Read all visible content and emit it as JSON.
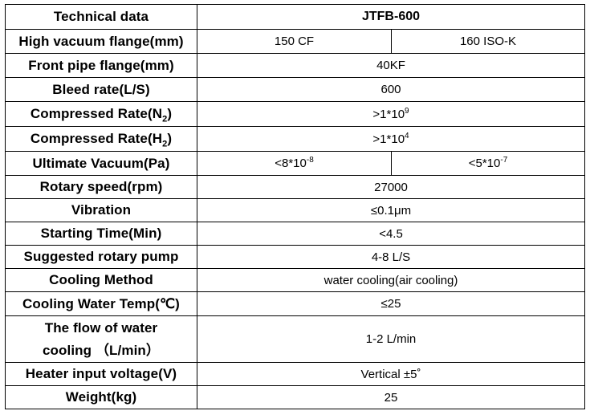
{
  "header": {
    "label": "Technical data",
    "model": "JTFB-600"
  },
  "rows": {
    "high_vacuum_flange": {
      "label": "High vacuum flange(mm)",
      "value_a": "150 CF",
      "value_b": "160 ISO-K"
    },
    "front_pipe_flange": {
      "label": "Front pipe flange(mm)",
      "value": "40KF"
    },
    "bleed_rate": {
      "label": "Bleed rate(L/S)",
      "value": "600"
    },
    "compressed_rate_n2": {
      "label_pre": "Compressed Rate(N",
      "label_sub": "2",
      "label_post": ")",
      "value_base": ">1*10",
      "value_exp": "9"
    },
    "compressed_rate_h2": {
      "label_pre": "Compressed Rate(H",
      "label_sub": "2",
      "label_post": ")",
      "value_base": ">1*10",
      "value_exp": "4"
    },
    "ultimate_vacuum": {
      "label": "Ultimate Vacuum(Pa)",
      "value_a_base": "<8*10",
      "value_a_exp": "-8",
      "value_b_base": "<5*10",
      "value_b_exp": "-7"
    },
    "rotary_speed": {
      "label": "Rotary speed(rpm)",
      "value": "27000"
    },
    "vibration": {
      "label": "Vibration",
      "value": "≤0.1μm"
    },
    "starting_time": {
      "label": "Starting Time(Min)",
      "value": "<4.5"
    },
    "suggested_pump": {
      "label": "Suggested rotary pump",
      "value": "4-8 L/S"
    },
    "cooling_method": {
      "label": "Cooling Method",
      "value": "water cooling(air cooling)"
    },
    "cooling_water_temp": {
      "label": "Cooling Water Temp(℃)",
      "value": "≤25"
    },
    "water_flow": {
      "label_line1": "The flow of water",
      "label_line2": "cooling （L/min）",
      "value": "1-2 L/min"
    },
    "heater_voltage": {
      "label": "Heater input voltage(V)",
      "value": "Vertical ±5˚"
    },
    "weight": {
      "label": "Weight(kg)",
      "value": "25"
    }
  }
}
